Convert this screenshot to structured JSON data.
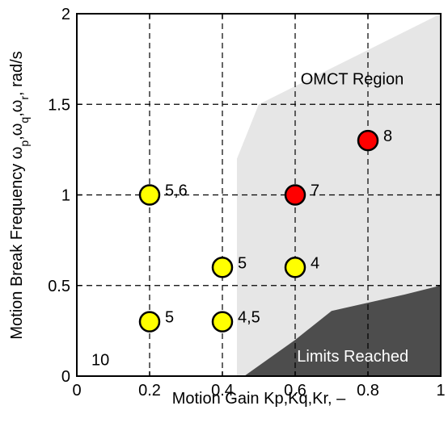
{
  "chart_data": {
    "type": "scatter",
    "title": "",
    "xlabel": "Motion Gain Kp,Kq,Kr, –",
    "ylabel": "Motion Break Frequency ωp,ωq,ωr, rad/s",
    "xlim": [
      0,
      1
    ],
    "ylim": [
      0,
      2
    ],
    "grid": true,
    "x_ticks": [
      {
        "v": 0,
        "label": "0"
      },
      {
        "v": 0.2,
        "label": "0.2"
      },
      {
        "v": 0.4,
        "label": "0.4"
      },
      {
        "v": 0.6,
        "label": "0.6"
      },
      {
        "v": 0.8,
        "label": "0.8"
      },
      {
        "v": 1,
        "label": "1"
      }
    ],
    "y_ticks": [
      {
        "v": 0,
        "label": "0"
      },
      {
        "v": 0.5,
        "label": "0.5"
      },
      {
        "v": 1,
        "label": "1"
      },
      {
        "v": 1.5,
        "label": "1.5"
      },
      {
        "v": 2,
        "label": "2"
      }
    ],
    "regions": [
      {
        "name": "OMCT Region",
        "color": "#e6e6e6",
        "boundary": [
          [
            0.44,
            0
          ],
          [
            0.44,
            1.2
          ],
          [
            0.5,
            1.5
          ],
          [
            0.6,
            1.6
          ],
          [
            1.0,
            2.0
          ],
          [
            1.0,
            0
          ]
        ]
      },
      {
        "name": "Limits Reached",
        "color": "#4d4d4d",
        "boundary": [
          [
            0.46,
            0
          ],
          [
            0.6,
            0.2
          ],
          [
            0.7,
            0.36
          ],
          [
            0.9,
            0.45
          ],
          [
            1.0,
            0.5
          ],
          [
            1.0,
            0
          ]
        ]
      }
    ],
    "points": [
      {
        "x": 0.2,
        "y": 1.0,
        "color": "#ffff00",
        "label": "5,6"
      },
      {
        "x": 0.2,
        "y": 0.3,
        "color": "#ffff00",
        "label": "5"
      },
      {
        "x": 0.4,
        "y": 0.6,
        "color": "#ffff00",
        "label": "5"
      },
      {
        "x": 0.4,
        "y": 0.3,
        "color": "#ffff00",
        "label": "4,5"
      },
      {
        "x": 0.6,
        "y": 1.0,
        "color": "#ff0000",
        "label": "7"
      },
      {
        "x": 0.6,
        "y": 0.6,
        "color": "#ffff00",
        "label": "4"
      },
      {
        "x": 0.8,
        "y": 1.3,
        "color": "#ff0000",
        "label": "8"
      }
    ],
    "annotations": [
      {
        "text": "10",
        "x": 0.04,
        "y": 0.06
      },
      {
        "text": "OMCT Region",
        "x": 0.615,
        "y": 1.61
      },
      {
        "text": "Limits Reached",
        "x": 0.605,
        "y": 0.08
      }
    ]
  }
}
